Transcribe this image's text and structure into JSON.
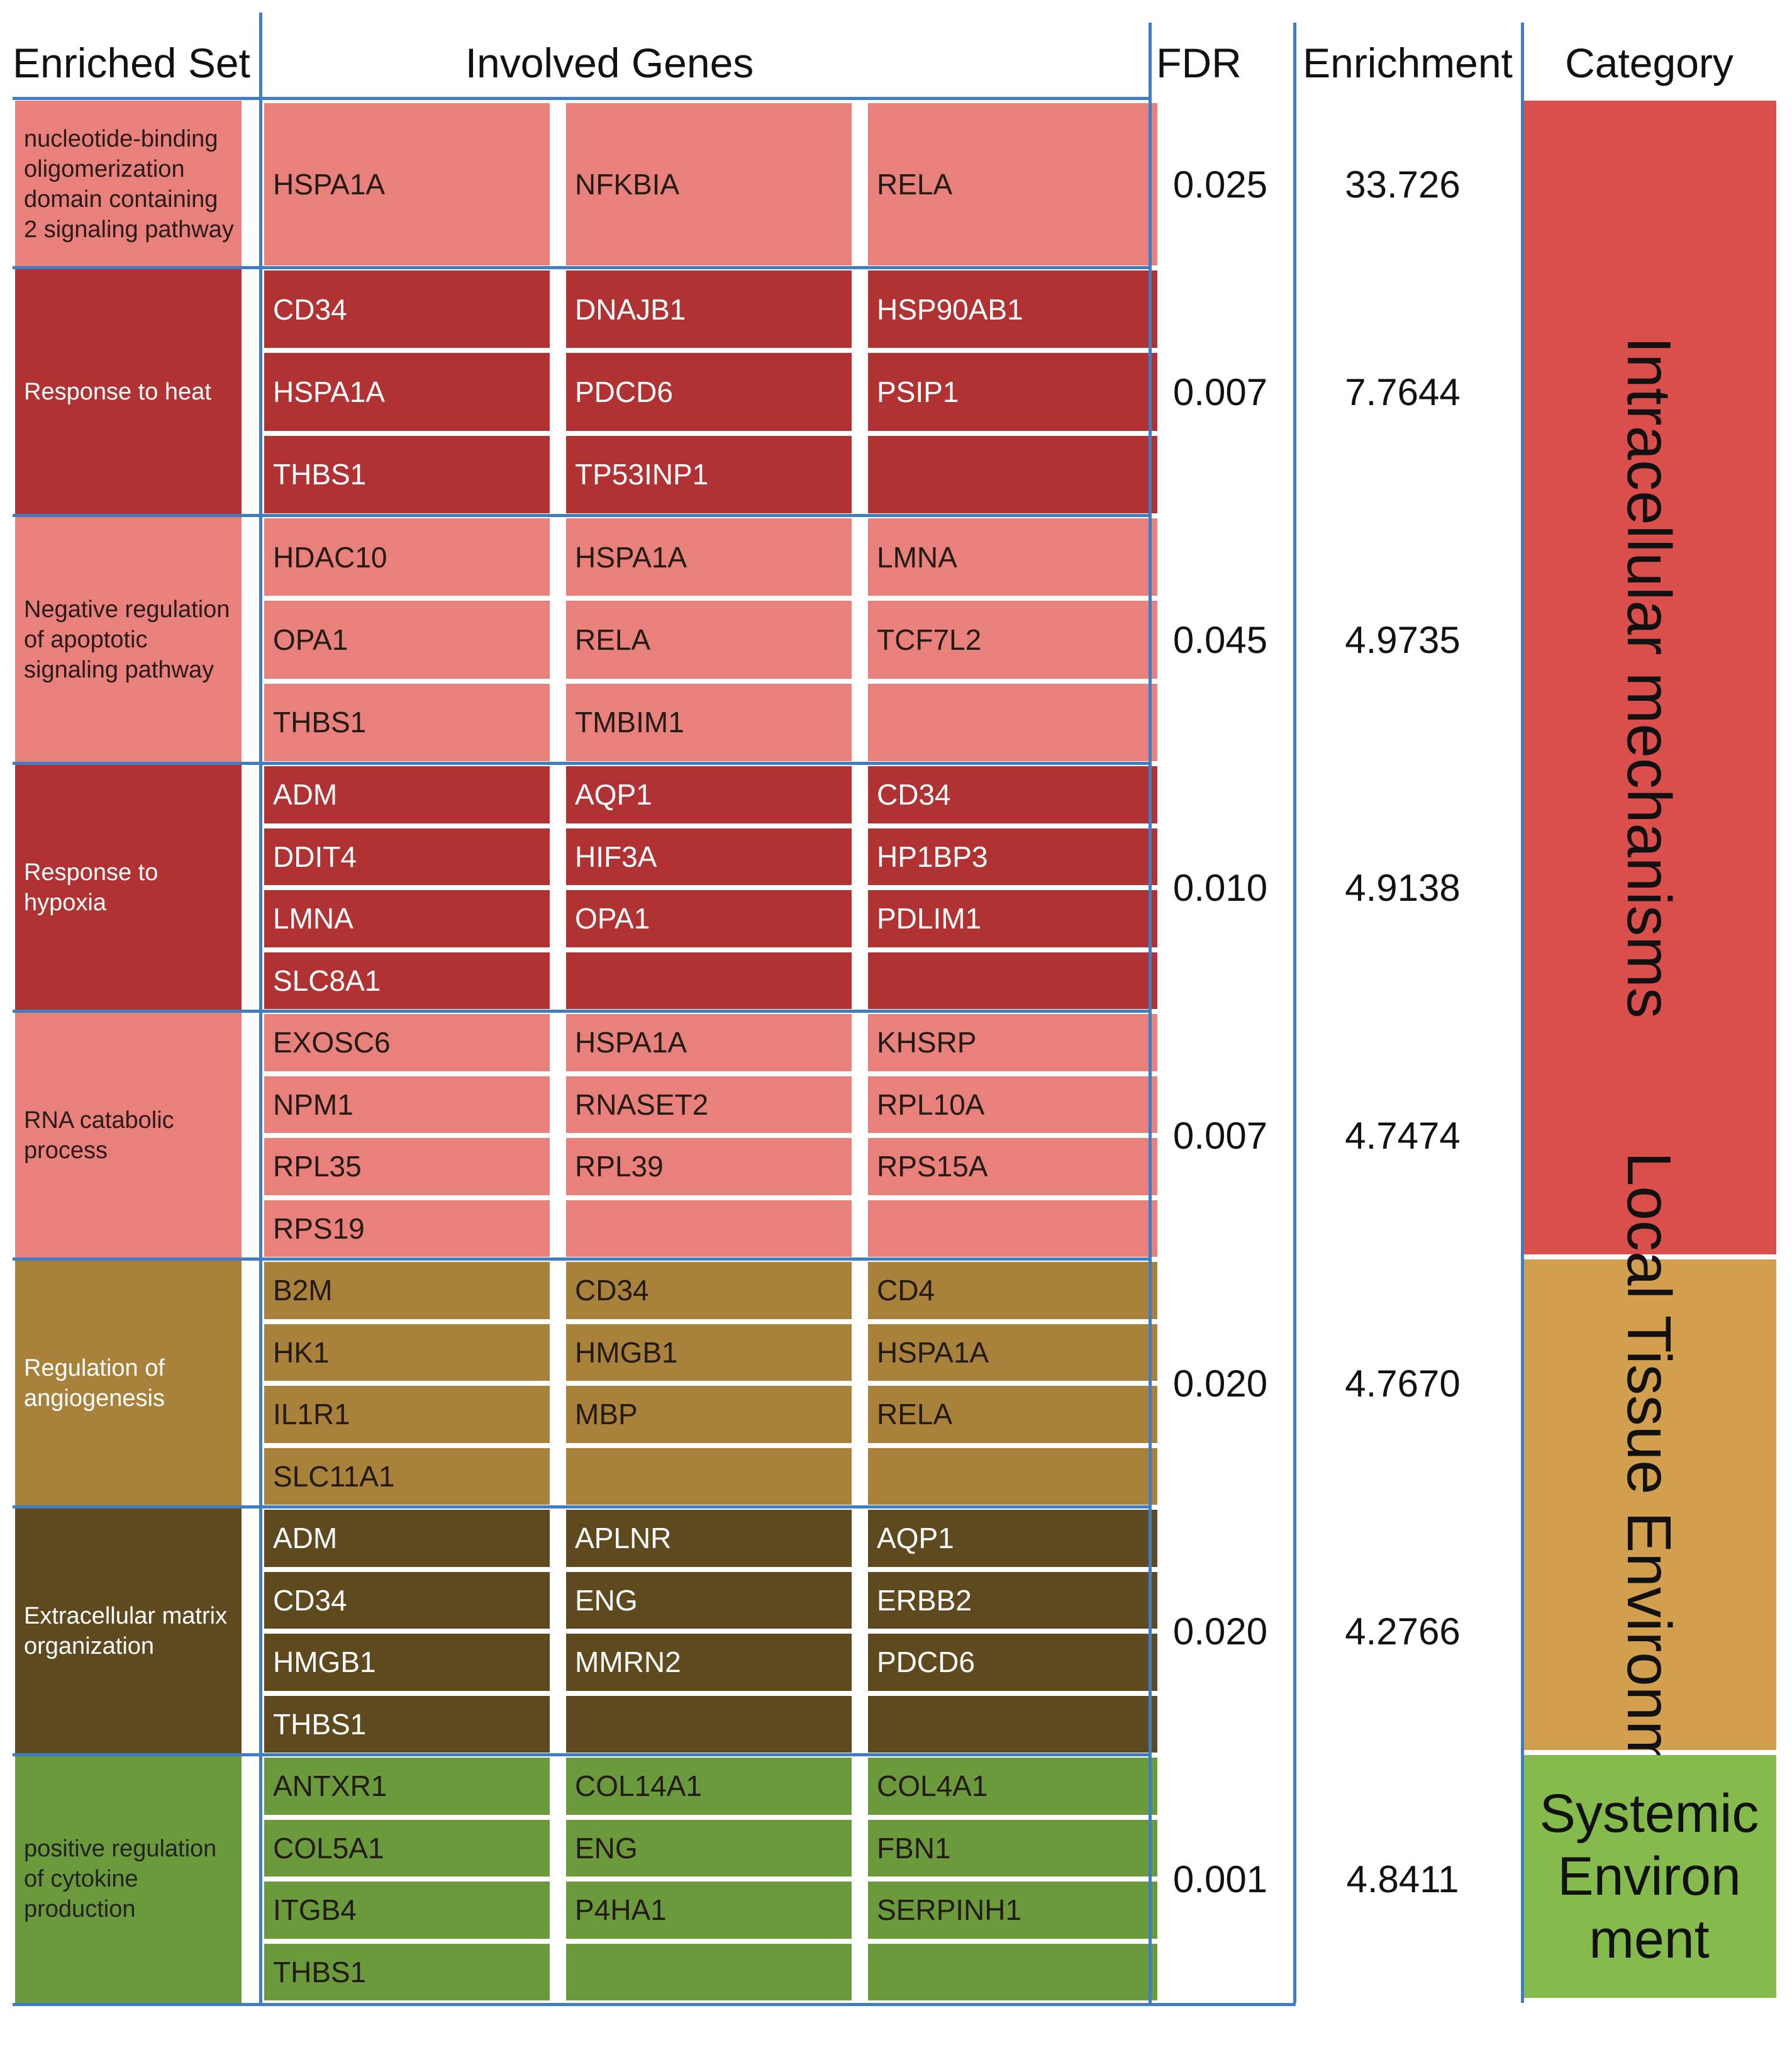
{
  "headers": {
    "enriched_set": "Enriched Set",
    "involved_genes": "Involved Genes",
    "fdr": "FDR",
    "enrichment": "Enrichment",
    "category": "Category"
  },
  "colors": {
    "light_red": "#e8807c",
    "dark_red": "#b03232",
    "gold": "#a8823a",
    "brown": "#5e4a1e",
    "green": "#6a9a3c",
    "cat_intracellular": "#da4f4b",
    "cat_local": "#d19f4e",
    "cat_systemic": "#84bb4c",
    "grid": "#3f7ec4"
  },
  "sets": [
    {
      "name": "nucleotide-binding oligomerization domain containing 2 signaling pathway",
      "color_key": "light_red",
      "fdr": "0.025",
      "enrichment": "33.726",
      "genes": [
        [
          "HSPA1A",
          "NFKBIA",
          "RELA"
        ]
      ]
    },
    {
      "name": "Response to heat",
      "color_key": "dark_red",
      "fdr": "0.007",
      "enrichment": "7.7644",
      "genes": [
        [
          "CD34",
          "DNAJB1",
          "HSP90AB1"
        ],
        [
          "HSPA1A",
          "PDCD6",
          "PSIP1"
        ],
        [
          "THBS1",
          "TP53INP1",
          ""
        ]
      ]
    },
    {
      "name": "Negative regulation of apoptotic signaling pathway",
      "color_key": "light_red",
      "fdr": "0.045",
      "enrichment": "4.9735",
      "genes": [
        [
          "HDAC10",
          "HSPA1A",
          "LMNA"
        ],
        [
          "OPA1",
          "RELA",
          "TCF7L2"
        ],
        [
          "THBS1",
          "TMBIM1",
          ""
        ]
      ]
    },
    {
      "name": "Response to hypoxia",
      "color_key": "dark_red",
      "fdr": "0.010",
      "enrichment": "4.9138",
      "genes": [
        [
          "ADM",
          "AQP1",
          "CD34"
        ],
        [
          "DDIT4",
          "HIF3A",
          "HP1BP3"
        ],
        [
          "LMNA",
          "OPA1",
          "PDLIM1"
        ],
        [
          "SLC8A1",
          "",
          ""
        ]
      ]
    },
    {
      "name": "RNA catabolic process",
      "color_key": "light_red",
      "fdr": "0.007",
      "enrichment": "4.7474",
      "genes": [
        [
          "EXOSC6",
          "HSPA1A",
          "KHSRP"
        ],
        [
          "NPM1",
          "RNASET2",
          "RPL10A"
        ],
        [
          "RPL35",
          "RPL39",
          "RPS15A"
        ],
        [
          "RPS19",
          "",
          ""
        ]
      ]
    },
    {
      "name": "Regulation of angiogenesis",
      "color_key": "gold",
      "fdr": "0.020",
      "enrichment": "4.7670",
      "genes": [
        [
          "B2M",
          "CD34",
          "CD4"
        ],
        [
          "HK1",
          "HMGB1",
          "HSPA1A"
        ],
        [
          "IL1R1",
          "MBP",
          "RELA"
        ],
        [
          "SLC11A1",
          "",
          ""
        ]
      ]
    },
    {
      "name": "Extracellular matrix organization",
      "color_key": "brown",
      "fdr": "0.020",
      "enrichment": "4.2766",
      "genes": [
        [
          "ADM",
          "APLNR",
          "AQP1"
        ],
        [
          "CD34",
          "ENG",
          "ERBB2"
        ],
        [
          "HMGB1",
          "MMRN2",
          "PDCD6"
        ],
        [
          "THBS1",
          "",
          ""
        ]
      ]
    },
    {
      "name": "positive regulation of cytokine production",
      "color_key": "green",
      "fdr": "0.001",
      "enrichment": "4.8411",
      "genes": [
        [
          "ANTXR1",
          "COL14A1",
          "COL4A1"
        ],
        [
          "COL5A1",
          "ENG",
          "FBN1"
        ],
        [
          "ITGB4",
          "P4HA1",
          "SERPINH1"
        ],
        [
          "THBS1",
          "",
          ""
        ]
      ]
    }
  ],
  "categories": [
    {
      "label": "Intracellular mechanisms",
      "color_key": "cat_intracellular"
    },
    {
      "label": "Local Tissue Environment",
      "color_key": "cat_local"
    },
    {
      "label": "Systemic Environ ment",
      "color_key": "cat_systemic"
    }
  ]
}
